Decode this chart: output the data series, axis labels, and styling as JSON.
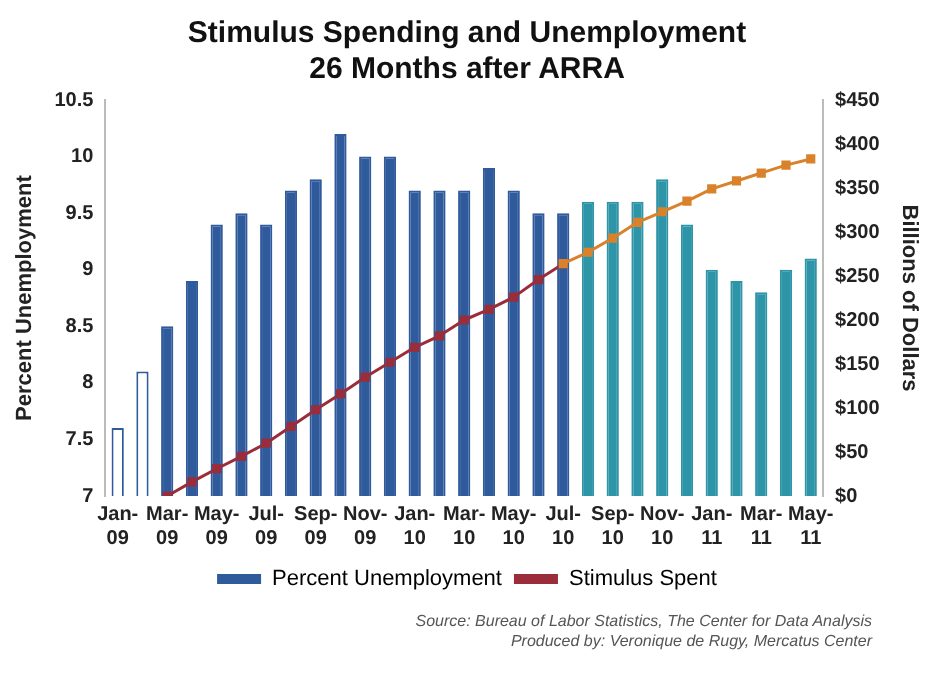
{
  "chart_data": {
    "type": "bar",
    "title": "Stimulus Spending and Unemployment\n26 Months after ARRA",
    "categories": [
      "Jan-09",
      null,
      "Mar-09",
      null,
      "May-09",
      null,
      "Jul-09",
      null,
      "Sep-09",
      null,
      "Nov-09",
      null,
      "Jan-10",
      null,
      "Mar-10",
      null,
      "May-10",
      null,
      "Jul-10",
      null,
      "Sep-10",
      null,
      "Nov-10",
      null,
      "Jan-11",
      null,
      "Mar-11",
      null,
      "May-11"
    ],
    "series": [
      {
        "name": "Percent Unemployment",
        "color": "#2f5a9b",
        "colors": [
          "#ffffff",
          "#ffffff",
          "#2f5a9b",
          "#2f5a9b",
          "#2f5a9b",
          "#2f5a9b",
          "#2f5a9b",
          "#2f5a9b",
          "#2f5a9b",
          "#2f5a9b",
          "#2f5a9b",
          "#2f5a9b",
          "#2f5a9b",
          "#2f5a9b",
          "#2f5a9b",
          "#2f5a9b",
          "#2f5a9b",
          "#2f5a9b",
          "#2f5a9b",
          "#2e95a8",
          "#2e95a8",
          "#2e95a8",
          "#2e95a8",
          "#2e95a8",
          "#2e95a8",
          "#2e95a8",
          "#2e95a8",
          "#2e95a8",
          "#2e95a8"
        ],
        "values": [
          7.6,
          8.1,
          8.5,
          8.9,
          9.4,
          9.5,
          9.4,
          9.7,
          9.8,
          10.2,
          10.0,
          10.0,
          9.7,
          9.7,
          9.7,
          9.9,
          9.7,
          9.5,
          9.5,
          9.6,
          9.6,
          9.6,
          9.8,
          9.4,
          9.0,
          8.9,
          8.8,
          9.0,
          9.1
        ]
      },
      {
        "name": "Stimulus Spent",
        "type": "line",
        "axis": "y2",
        "color": "#9b2d3b",
        "values": [
          null,
          null,
          0,
          16,
          31,
          45,
          60,
          79,
          98,
          116,
          135,
          152,
          169,
          182,
          200,
          212,
          226,
          246,
          264,
          null,
          null,
          null,
          null,
          null,
          null,
          null,
          null,
          null,
          null
        ]
      },
      {
        "type": "line",
        "axis": "y2",
        "color": "#d9822b",
        "values": [
          null,
          null,
          null,
          null,
          null,
          null,
          null,
          null,
          null,
          null,
          null,
          null,
          null,
          null,
          null,
          null,
          null,
          null,
          264,
          277,
          293,
          311,
          323,
          335,
          349,
          358,
          367,
          376,
          383
        ]
      }
    ],
    "ylabel": "Percent Unemployment",
    "y2label": "Billions of Dollars",
    "ylim": [
      7,
      10.5
    ],
    "yticks": [
      7,
      7.5,
      8,
      8.5,
      9,
      9.5,
      10,
      10.5
    ],
    "y2lim": [
      0,
      450
    ],
    "y2ticks": [
      {
        "value": 0,
        "label": "$0"
      },
      {
        "value": 50,
        "label": "$50"
      },
      {
        "value": 100,
        "label": "$100"
      },
      {
        "value": 150,
        "label": "$150"
      },
      {
        "value": 200,
        "label": "$200"
      },
      {
        "value": 250,
        "label": "$250"
      },
      {
        "value": 300,
        "label": "$300"
      },
      {
        "value": 350,
        "label": "$350"
      },
      {
        "value": 400,
        "label": "$400"
      },
      {
        "value": 450,
        "label": "$450"
      }
    ],
    "grid": false,
    "legend": "bottom",
    "marker": "square",
    "line_style": "solid",
    "annotations": [
      "Source: Bureau of Labor Statistics, The Center for Data Analysis",
      "Produced by: Veronique de Rugy, Mercatus Center"
    ]
  }
}
